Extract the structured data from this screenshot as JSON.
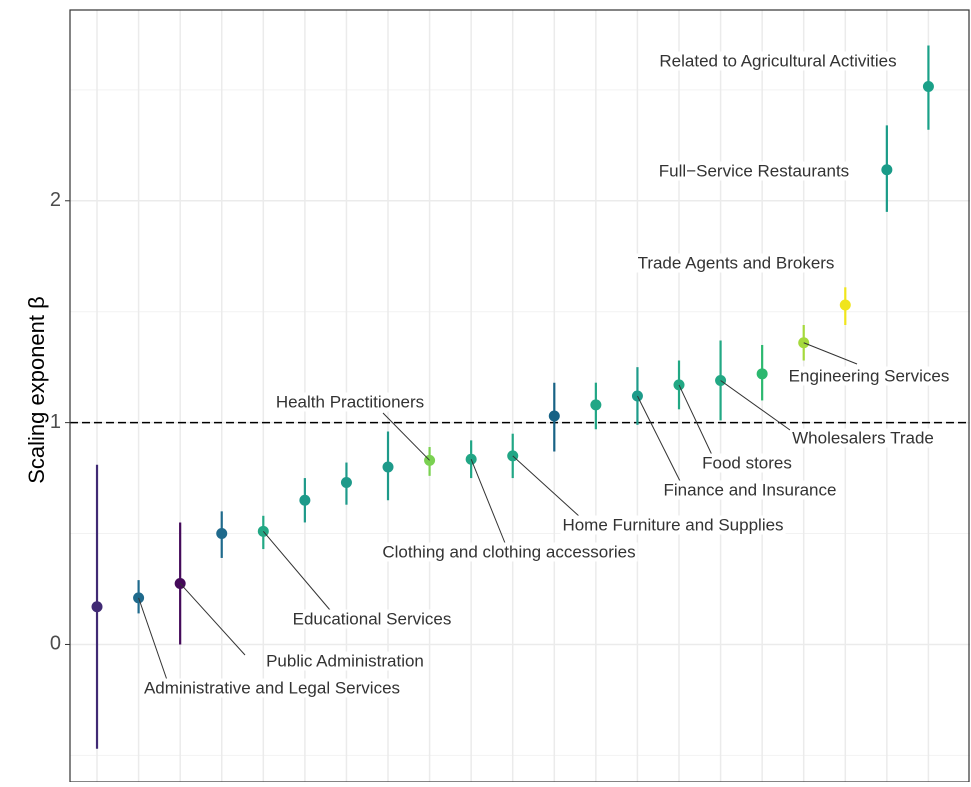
{
  "chart_data": {
    "type": "pointrange",
    "ylabel": "Scaling exponent β",
    "x": [
      1,
      2,
      3,
      4,
      5,
      6,
      7,
      8,
      9,
      10,
      11,
      12,
      13,
      14,
      15,
      16,
      17,
      18,
      19,
      20,
      21
    ],
    "values": [
      0.17,
      0.21,
      0.275,
      0.5,
      0.51,
      0.65,
      0.73,
      0.8,
      0.83,
      0.835,
      0.85,
      1.03,
      1.08,
      1.12,
      1.17,
      1.19,
      1.22,
      1.36,
      1.53,
      2.14,
      2.515
    ],
    "low": [
      -0.47,
      0.14,
      0.0,
      0.39,
      0.43,
      0.55,
      0.63,
      0.65,
      0.76,
      0.75,
      0.75,
      0.87,
      0.97,
      0.99,
      1.06,
      1.01,
      1.1,
      1.28,
      1.44,
      1.95,
      2.32
    ],
    "high": [
      0.81,
      0.29,
      0.55,
      0.6,
      0.58,
      0.75,
      0.82,
      0.96,
      0.89,
      0.92,
      0.95,
      1.18,
      1.18,
      1.25,
      1.28,
      1.37,
      1.35,
      1.44,
      1.61,
      2.34,
      2.7
    ],
    "colors": [
      "#402a74",
      "#1f6a8c",
      "#450a5a",
      "#1f6a8c",
      "#22a884",
      "#1e9a8a",
      "#1e9a8a",
      "#1e9a8a",
      "#7ad151",
      "#21a685",
      "#21a685",
      "#176285",
      "#21a685",
      "#1e9b8a",
      "#22a884",
      "#22a884",
      "#2cb86f",
      "#a5d93c",
      "#f0e51c",
      "#1a9b88",
      "#1aa088"
    ],
    "annotations": [
      "Related to Agricultural Activities",
      "Full−Service Restaurants",
      "Trade Agents and Brokers",
      "Engineering Services",
      "Wholesalers Trade",
      "Food stores",
      "Finance and Insurance",
      "Home Furniture and Supplies",
      "Clothing and clothing accessories",
      "Health Practitioners",
      "Educational Services",
      "Public Administration",
      "Administrative and Legal Services"
    ],
    "xlim": [
      0.35,
      22.0
    ],
    "ylim": [
      -0.62,
      2.86
    ],
    "xticks": [
      1,
      2,
      3,
      4,
      5,
      6,
      7,
      8,
      9,
      10,
      11,
      12,
      13,
      14,
      15,
      16,
      17,
      18,
      19,
      20,
      21
    ],
    "yticks": [
      0,
      1,
      2
    ],
    "minor_yticks": [
      -0.5,
      0.5,
      1.5,
      2.5
    ],
    "reference_line": 1,
    "grid": true
  }
}
